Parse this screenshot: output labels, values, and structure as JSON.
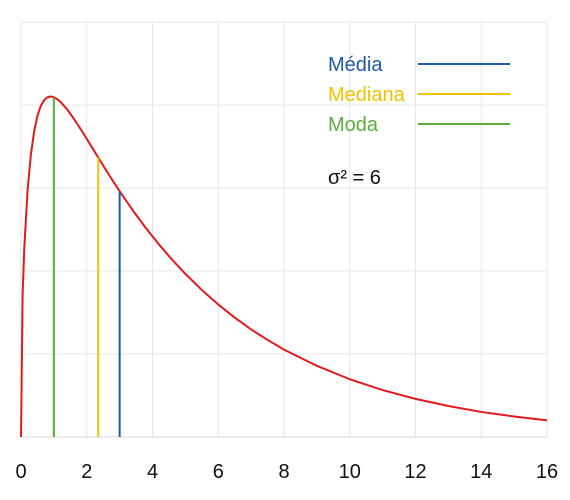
{
  "chart_data": {
    "type": "line",
    "title": "",
    "xlabel": "",
    "ylabel": "",
    "xlim": [
      0,
      16
    ],
    "ylim": [
      0,
      0.245
    ],
    "x_ticks": [
      "0",
      "2",
      "4",
      "6",
      "8",
      "10",
      "12",
      "14",
      "16"
    ],
    "grid": true,
    "legend_position": "top-right",
    "series": [
      {
        "color": "#e31a1c",
        "x": [
          0,
          0.05,
          0.1,
          0.2,
          0.3,
          0.4,
          0.5,
          0.6,
          0.7,
          0.8,
          0.9,
          1.0,
          1.1,
          1.2,
          1.4,
          1.6,
          1.8,
          2.0,
          2.2,
          2.4,
          2.6,
          2.8,
          3.0,
          3.4,
          3.8,
          4.2,
          4.6,
          5.0,
          5.5,
          6.0,
          6.5,
          7.0,
          7.5,
          8.0,
          9.0,
          10.0,
          11.0,
          12.0,
          13.0,
          14.0,
          15.0,
          16.0
        ],
        "y": [
          0,
          0.0847,
          0.1116,
          0.1457,
          0.1666,
          0.1804,
          0.1896,
          0.1954,
          0.1988,
          0.2005,
          0.201,
          0.2006,
          0.1995,
          0.1979,
          0.1935,
          0.1881,
          0.1822,
          0.176,
          0.1697,
          0.1634,
          0.1571,
          0.151,
          0.1451,
          0.1338,
          0.1233,
          0.1136,
          0.1046,
          0.0963,
          0.0868,
          0.0782,
          0.0705,
          0.0635,
          0.0573,
          0.0516,
          0.042,
          0.0341,
          0.0277,
          0.0225,
          0.0183,
          0.0148,
          0.0121,
          0.0098
        ]
      }
    ],
    "reference_lines": [
      {
        "name": "Média",
        "x": 3.0,
        "y": 0.1451,
        "color": "#1f5aa8"
      },
      {
        "name": "Mediana",
        "x": 2.35,
        "y": 0.165,
        "color": "#f2c100"
      },
      {
        "name": "Moda",
        "x": 1.0,
        "y": 0.2006,
        "color": "#5aae3c"
      }
    ],
    "annotation": "σ² = 6"
  }
}
